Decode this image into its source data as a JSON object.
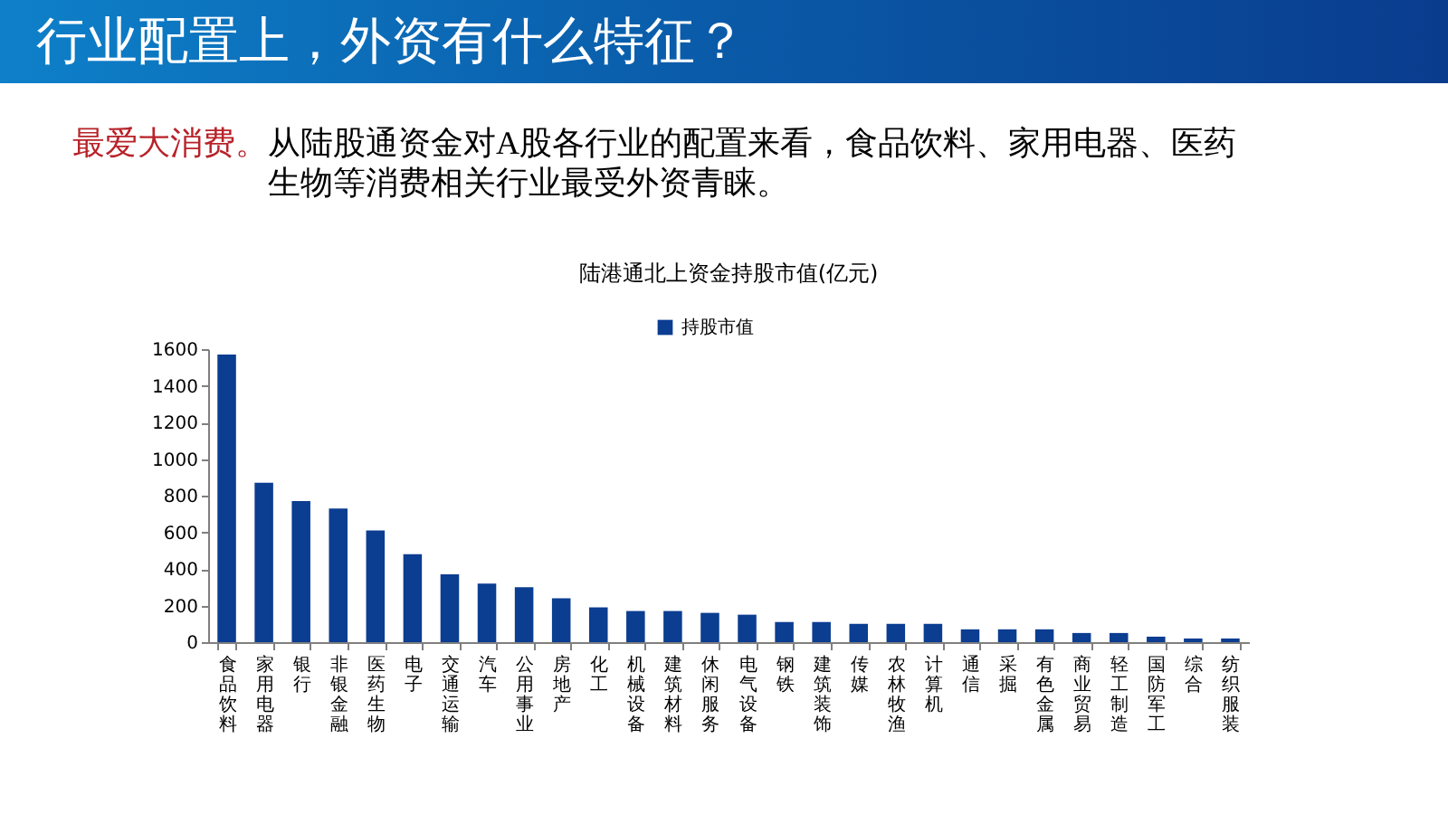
{
  "chart_data": {
    "type": "bar",
    "title": "陆港通北上资金持股市值(亿元)",
    "annotations": [
      "行业配置上，外资有什么特征？",
      "最爱大消费。",
      "从陆股通资金对A股各行业的配置来看，食品饮料、家用电器、医药生物等消费相关行业最受外资青睐。"
    ],
    "categories": [
      "食品饮料",
      "家用电器",
      "银行",
      "非银金融",
      "医药生物",
      "电子",
      "交通运输",
      "汽车",
      "公用事业",
      "房地产",
      "化工",
      "机械设备",
      "建筑材料",
      "休闲服务",
      "电气设备",
      "钢铁",
      "建筑装饰",
      "传媒",
      "农林牧渔",
      "计算机",
      "通信",
      "采掘",
      "有色金属",
      "商业贸易",
      "轻工制造",
      "国防军工",
      "综合",
      "纺织服装"
    ],
    "series": [
      {
        "name": "持股市值",
        "color": "#0b3d91",
        "values": [
          1570,
          870,
          770,
          730,
          610,
          480,
          370,
          320,
          300,
          240,
          190,
          170,
          170,
          160,
          150,
          110,
          110,
          100,
          100,
          100,
          70,
          70,
          70,
          50,
          50,
          30,
          20,
          20
        ]
      }
    ],
    "ylim": [
      0,
      1600
    ],
    "yticks": [
      0,
      200,
      400,
      600,
      800,
      1000,
      1200,
      1400,
      1600
    ],
    "grid": false,
    "legend": "top"
  }
}
